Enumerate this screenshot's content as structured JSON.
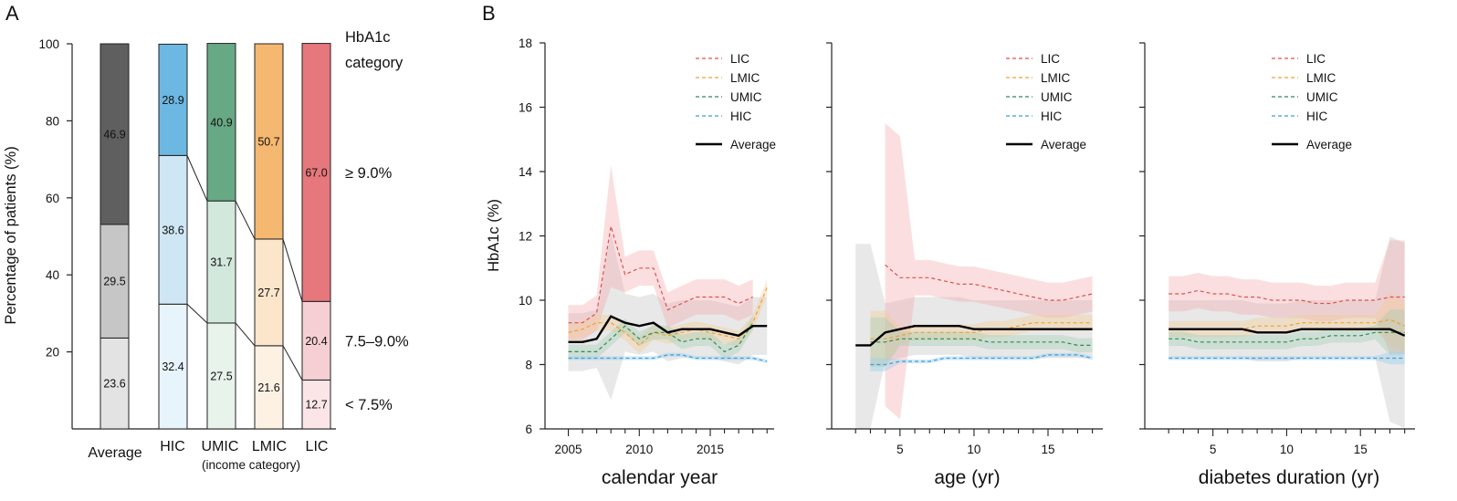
{
  "panel_a_label": "A",
  "panel_b_label": "B",
  "chart_data": [
    {
      "type": "bar",
      "stacked": true,
      "ylabel": "Percentage of patients (%)",
      "ylim": [
        0,
        100
      ],
      "yticks": [
        20,
        40,
        60,
        80,
        100
      ],
      "categories": [
        "Average",
        "HIC",
        "UMIC",
        "LMIC",
        "LIC"
      ],
      "xlabel": "(income category)",
      "legend_title": [
        "HbA1c",
        "category"
      ],
      "series": [
        {
          "name": "< 7.5%",
          "values": [
            23.6,
            32.4,
            27.5,
            21.6,
            12.7
          ]
        },
        {
          "name": "7.5–9.0%",
          "values": [
            29.5,
            38.6,
            31.7,
            27.7,
            20.4
          ]
        },
        {
          "name": "≥ 9.0%",
          "values": [
            46.9,
            28.9,
            40.9,
            50.7,
            67.0
          ]
        }
      ],
      "colors": {
        "Average": [
          "#e3e3e3",
          "#c6c6c6",
          "#5f5f5f"
        ],
        "HIC": [
          "#e8f4fb",
          "#cfe6f4",
          "#6cb8e2"
        ],
        "UMIC": [
          "#e8f3ec",
          "#d3e8dc",
          "#68a985"
        ],
        "LMIC": [
          "#fdf1e4",
          "#fbe5cb",
          "#f5b870"
        ],
        "LIC": [
          "#fbe5e7",
          "#f5cfd3",
          "#e6777d"
        ]
      }
    },
    {
      "type": "line",
      "ylabel": "HbA1c (%)",
      "ylim": [
        6,
        18
      ],
      "yticks": [
        6,
        8,
        10,
        12,
        14,
        16,
        18
      ],
      "legend": [
        "LIC",
        "LMIC",
        "UMIC",
        "HIC",
        "Average"
      ],
      "series_colors": {
        "LIC": "#e0504f",
        "LMIC": "#f0a030",
        "UMIC": "#2e8a57",
        "HIC": "#3aa0d8",
        "Average": "#000000"
      },
      "subplots": [
        {
          "xlabel": "calendar year",
          "xlim": [
            2004,
            2019.5
          ],
          "xticks": [
            2005,
            2010,
            2015
          ],
          "x": [
            2005,
            2006,
            2007,
            2008,
            2009,
            2010,
            2011,
            2012,
            2013,
            2014,
            2015,
            2016,
            2017,
            2018,
            2019
          ],
          "series": [
            {
              "name": "LIC",
              "values": [
                9.3,
                9.3,
                9.6,
                12.3,
                10.8,
                11.0,
                11.0,
                9.7,
                9.9,
                10.1,
                10.1,
                10.1,
                9.9,
                10.1,
                null
              ]
            },
            {
              "name": "LMIC",
              "values": [
                9.0,
                9.1,
                9.3,
                9.3,
                9.0,
                8.6,
                9.0,
                8.9,
                9.0,
                9.1,
                9.0,
                8.9,
                8.8,
                9.3,
                10.4
              ]
            },
            {
              "name": "UMIC",
              "values": [
                8.4,
                8.4,
                8.4,
                8.8,
                9.2,
                8.8,
                9.0,
                9.0,
                8.7,
                8.8,
                8.8,
                8.4,
                8.6,
                9.3,
                null
              ]
            },
            {
              "name": "HIC",
              "values": [
                8.2,
                8.2,
                8.2,
                8.2,
                8.2,
                8.2,
                8.2,
                8.3,
                8.3,
                8.2,
                8.2,
                8.2,
                8.2,
                8.2,
                8.1
              ]
            },
            {
              "name": "Average",
              "values": [
                8.7,
                8.7,
                8.8,
                9.5,
                9.3,
                9.2,
                9.3,
                9.0,
                9.1,
                9.1,
                9.1,
                9.0,
                8.9,
                9.2,
                9.2
              ]
            }
          ]
        },
        {
          "xlabel": "age (yr)",
          "xlim": [
            1,
            18.7
          ],
          "xticks": [
            5,
            10,
            15
          ],
          "x": [
            2,
            3,
            4,
            5,
            6,
            7,
            8,
            9,
            10,
            11,
            12,
            13,
            14,
            15,
            16,
            17,
            18
          ],
          "series": [
            {
              "name": "LIC",
              "values": [
                null,
                null,
                11.1,
                10.7,
                10.7,
                10.7,
                10.6,
                10.5,
                10.5,
                10.4,
                10.3,
                10.2,
                10.1,
                10.0,
                10.0,
                10.1,
                10.2
              ]
            },
            {
              "name": "LMIC",
              "values": [
                null,
                8.8,
                8.8,
                8.9,
                9.0,
                9.0,
                9.0,
                9.0,
                9.0,
                9.1,
                9.1,
                9.2,
                9.3,
                9.3,
                9.3,
                9.3,
                9.3
              ]
            },
            {
              "name": "UMIC",
              "values": [
                null,
                8.7,
                8.7,
                8.8,
                8.8,
                8.8,
                8.8,
                8.8,
                8.8,
                8.7,
                8.7,
                8.7,
                8.7,
                8.7,
                8.7,
                8.6,
                8.6
              ]
            },
            {
              "name": "HIC",
              "values": [
                null,
                8.0,
                8.0,
                8.1,
                8.1,
                8.1,
                8.2,
                8.2,
                8.2,
                8.2,
                8.2,
                8.2,
                8.2,
                8.3,
                8.3,
                8.3,
                8.2
              ]
            },
            {
              "name": "Average",
              "values": [
                8.6,
                8.6,
                9.0,
                9.1,
                9.2,
                9.2,
                9.2,
                9.2,
                9.1,
                9.1,
                9.1,
                9.1,
                9.1,
                9.1,
                9.1,
                9.1,
                9.1
              ]
            }
          ]
        },
        {
          "xlabel": "diabetes duration (yr)",
          "xlim": [
            1,
            18.7
          ],
          "xticks": [
            5,
            10,
            15
          ],
          "x": [
            2,
            3,
            4,
            5,
            6,
            7,
            8,
            9,
            10,
            11,
            12,
            13,
            14,
            15,
            16,
            17,
            18
          ],
          "series": [
            {
              "name": "LIC",
              "values": [
                10.2,
                10.2,
                10.3,
                10.2,
                10.2,
                10.1,
                10.1,
                10.0,
                10.0,
                10.0,
                9.9,
                9.9,
                10.0,
                10.0,
                10.0,
                10.1,
                10.1
              ]
            },
            {
              "name": "LMIC",
              "values": [
                9.1,
                9.1,
                9.1,
                9.1,
                9.1,
                9.1,
                9.2,
                9.2,
                9.2,
                9.3,
                9.3,
                9.3,
                9.3,
                9.3,
                9.3,
                9.4,
                9.2
              ]
            },
            {
              "name": "UMIC",
              "values": [
                8.8,
                8.8,
                8.7,
                8.7,
                8.7,
                8.7,
                8.7,
                8.7,
                8.7,
                8.8,
                8.8,
                8.9,
                8.9,
                8.9,
                9.0,
                9.0,
                9.0
              ]
            },
            {
              "name": "HIC",
              "values": [
                8.2,
                8.2,
                8.2,
                8.2,
                8.2,
                8.2,
                8.2,
                8.2,
                8.2,
                8.2,
                8.2,
                8.2,
                8.2,
                8.2,
                8.2,
                8.2,
                8.2
              ]
            },
            {
              "name": "Average",
              "values": [
                9.1,
                9.1,
                9.1,
                9.1,
                9.1,
                9.1,
                9.0,
                9.0,
                9.0,
                9.1,
                9.1,
                9.1,
                9.1,
                9.1,
                9.1,
                9.1,
                8.9
              ]
            }
          ]
        }
      ]
    }
  ]
}
